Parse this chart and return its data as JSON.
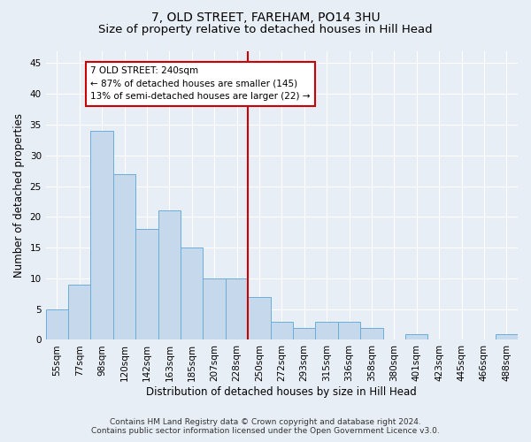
{
  "title": "7, OLD STREET, FAREHAM, PO14 3HU",
  "subtitle": "Size of property relative to detached houses in Hill Head",
  "xlabel": "Distribution of detached houses by size in Hill Head",
  "ylabel": "Number of detached properties",
  "categories": [
    "55sqm",
    "77sqm",
    "98sqm",
    "120sqm",
    "142sqm",
    "163sqm",
    "185sqm",
    "207sqm",
    "228sqm",
    "250sqm",
    "272sqm",
    "293sqm",
    "315sqm",
    "336sqm",
    "358sqm",
    "380sqm",
    "401sqm",
    "423sqm",
    "445sqm",
    "466sqm",
    "488sqm"
  ],
  "values": [
    5,
    9,
    34,
    27,
    18,
    21,
    15,
    10,
    10,
    7,
    3,
    2,
    3,
    3,
    2,
    0,
    1,
    0,
    0,
    0,
    1
  ],
  "bar_color": "#c5d8ec",
  "bar_edge_color": "#6aaed6",
  "background_color": "#e8eef5",
  "grid_color": "#ffffff",
  "annotation_text_line1": "7 OLD STREET: 240sqm",
  "annotation_text_line2": "← 87% of detached houses are smaller (145)",
  "annotation_text_line3": "13% of semi-detached houses are larger (22) →",
  "annotation_box_facecolor": "#ffffff",
  "annotation_box_edgecolor": "#cc0000",
  "vline_color": "#cc0000",
  "vline_x_index": 8.5,
  "ylim": [
    0,
    47
  ],
  "yticks": [
    0,
    5,
    10,
    15,
    20,
    25,
    30,
    35,
    40,
    45
  ],
  "footer_line1": "Contains HM Land Registry data © Crown copyright and database right 2024.",
  "footer_line2": "Contains public sector information licensed under the Open Government Licence v3.0.",
  "title_fontsize": 10,
  "subtitle_fontsize": 9.5,
  "xlabel_fontsize": 8.5,
  "ylabel_fontsize": 8.5,
  "tick_fontsize": 7.5,
  "annotation_fontsize": 7.5,
  "footer_fontsize": 6.5
}
